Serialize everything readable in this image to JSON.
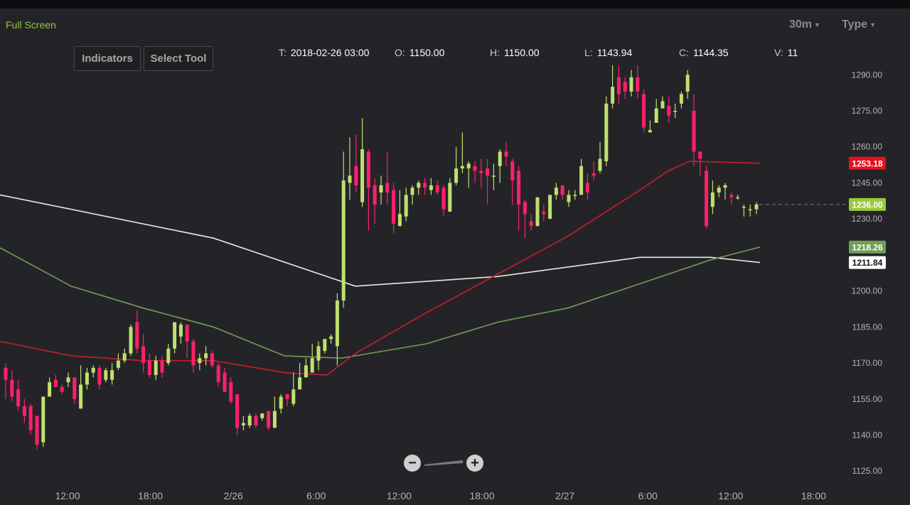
{
  "toolbar": {
    "full_screen": "Full Screen",
    "indicators": "Indicators",
    "select_tool": "Select Tool",
    "interval": "30m",
    "type": "Type"
  },
  "ohlc": {
    "t_label": "T:",
    "t_value": "2018-02-26 03:00",
    "o_label": "O:",
    "o_value": "1150.00",
    "h_label": "H:",
    "h_value": "1150.00",
    "l_label": "L:",
    "l_value": "1143.94",
    "c_label": "C:",
    "c_value": "1144.35",
    "v_label": "V:",
    "v_value": "11"
  },
  "zoom": {
    "minus": "−",
    "plus": "+"
  },
  "colors": {
    "up": "#c0e06e",
    "down": "#ff1f6b",
    "ma_red": "#c81e2a",
    "ma_green": "#6f9e55",
    "ma_white": "#e8e8e8",
    "background": "#242428"
  },
  "chart_data": {
    "type": "candlestick",
    "y_ticks": [
      "1290.00",
      "1275.00",
      "1260.00",
      "1245.00",
      "1230.00",
      "1200.00",
      "1185.00",
      "1170.00",
      "1155.00",
      "1140.00",
      "1125.00"
    ],
    "ylim": [
      1123,
      1296
    ],
    "x_ticks": [
      "12:00",
      "18:00",
      "2/26",
      "6:00",
      "12:00",
      "18:00",
      "2/27",
      "6:00",
      "12:00",
      "18:00"
    ],
    "price_labels": [
      {
        "text": "1253.18",
        "value": 1253.18,
        "color": "#e8101e",
        "text_color": "#ffffff"
      },
      {
        "text": "1236.00",
        "value": 1236.0,
        "color": "#9acb3c",
        "text_color": "#ffffff"
      },
      {
        "text": "1218.26",
        "value": 1218.26,
        "color": "#6f9e55",
        "text_color": "#ffffff"
      },
      {
        "text": "1211.84",
        "value": 1211.84,
        "color": "#ffffff",
        "text_color": "#111111"
      }
    ],
    "last_price": 1236.0,
    "candles": [
      [
        1168,
        1163,
        1170,
        1155
      ],
      [
        1163,
        1156,
        1167,
        1154
      ],
      [
        1159,
        1152,
        1163,
        1150
      ],
      [
        1152,
        1148,
        1155,
        1145
      ],
      [
        1152,
        1142,
        1153,
        1140
      ],
      [
        1148,
        1136,
        1148,
        1134
      ],
      [
        1137,
        1156,
        1156,
        1135
      ],
      [
        1156,
        1162,
        1164,
        1156
      ],
      [
        1163,
        1160,
        1165,
        1160
      ],
      [
        1160,
        1158,
        1161,
        1157
      ],
      [
        1162,
        1164,
        1166,
        1160
      ],
      [
        1164,
        1155,
        1164,
        1153
      ],
      [
        1151,
        1161,
        1169,
        1151
      ],
      [
        1161,
        1166,
        1168,
        1159
      ],
      [
        1166,
        1168,
        1169,
        1164
      ],
      [
        1168,
        1161,
        1169,
        1159
      ],
      [
        1163,
        1167,
        1168,
        1162
      ],
      [
        1163,
        1167,
        1170,
        1161
      ],
      [
        1168,
        1171,
        1174,
        1167
      ],
      [
        1171,
        1174,
        1176,
        1170
      ],
      [
        1174,
        1185,
        1186,
        1173
      ],
      [
        1187,
        1176,
        1192,
        1174
      ],
      [
        1177,
        1170,
        1182,
        1166
      ],
      [
        1171,
        1165,
        1174,
        1164
      ],
      [
        1165,
        1171,
        1173,
        1163
      ],
      [
        1171,
        1166,
        1173,
        1164
      ],
      [
        1170,
        1176,
        1178,
        1169
      ],
      [
        1176,
        1187,
        1187,
        1174
      ],
      [
        1181,
        1186,
        1187,
        1178
      ],
      [
        1186,
        1179,
        1186,
        1172
      ],
      [
        1179,
        1169,
        1180,
        1166
      ],
      [
        1170,
        1172,
        1174,
        1167
      ],
      [
        1172,
        1174,
        1177,
        1169
      ],
      [
        1174,
        1169,
        1175,
        1168
      ],
      [
        1169,
        1162,
        1170,
        1160
      ],
      [
        1166,
        1158,
        1168,
        1158
      ],
      [
        1162,
        1154,
        1164,
        1153
      ],
      [
        1157,
        1143,
        1157,
        1140
      ],
      [
        1144,
        1145,
        1148,
        1142
      ],
      [
        1144,
        1148,
        1149,
        1143
      ],
      [
        1148,
        1144,
        1149,
        1143
      ],
      [
        1147,
        1149,
        1149,
        1146
      ],
      [
        1150,
        1143,
        1149,
        1142
      ],
      [
        1143,
        1150,
        1156,
        1143
      ],
      [
        1151,
        1156,
        1157,
        1149
      ],
      [
        1157,
        1155,
        1157,
        1152
      ],
      [
        1153,
        1159,
        1166,
        1152
      ],
      [
        1159,
        1164,
        1170,
        1159
      ],
      [
        1164,
        1169,
        1172,
        1164
      ],
      [
        1166,
        1172,
        1178,
        1166
      ],
      [
        1171,
        1177,
        1179,
        1167
      ],
      [
        1175,
        1180,
        1180,
        1174
      ],
      [
        1180,
        1181,
        1182,
        1178
      ],
      [
        1177,
        1196,
        1199,
        1169
      ],
      [
        1196,
        1246,
        1258,
        1193
      ],
      [
        1245,
        1248,
        1264,
        1238
      ],
      [
        1252,
        1244,
        1265,
        1241
      ],
      [
        1237,
        1259,
        1272,
        1235
      ],
      [
        1258,
        1243,
        1259,
        1225
      ],
      [
        1244,
        1236,
        1247,
        1228
      ],
      [
        1241,
        1244,
        1248,
        1236
      ],
      [
        1245,
        1241,
        1258,
        1236
      ],
      [
        1242,
        1228,
        1245,
        1224
      ],
      [
        1227,
        1232,
        1242,
        1227
      ],
      [
        1231,
        1240,
        1243,
        1229
      ],
      [
        1240,
        1243,
        1244,
        1236
      ],
      [
        1243,
        1245,
        1246,
        1240
      ],
      [
        1245,
        1243,
        1247,
        1240
      ],
      [
        1242,
        1244,
        1247,
        1240
      ],
      [
        1244,
        1241,
        1246,
        1240
      ],
      [
        1243,
        1234,
        1244,
        1231
      ],
      [
        1233,
        1245,
        1247,
        1233
      ],
      [
        1245,
        1251,
        1260,
        1244
      ],
      [
        1251,
        1252,
        1266,
        1249
      ],
      [
        1251,
        1253,
        1254,
        1243
      ],
      [
        1252,
        1250,
        1254,
        1245
      ],
      [
        1250,
        1249,
        1255,
        1243
      ],
      [
        1251,
        1248,
        1255,
        1236
      ],
      [
        1248,
        1248,
        1253,
        1242
      ],
      [
        1252,
        1258,
        1259,
        1245
      ],
      [
        1258,
        1256,
        1262,
        1252
      ],
      [
        1254,
        1246,
        1255,
        1236
      ],
      [
        1250,
        1236,
        1252,
        1225
      ],
      [
        1237,
        1232,
        1238,
        1222
      ],
      [
        1229,
        1227,
        1232,
        1225
      ],
      [
        1227,
        1239,
        1239,
        1227
      ],
      [
        1233,
        1232,
        1236,
        1229
      ],
      [
        1230,
        1240,
        1240,
        1230
      ],
      [
        1240,
        1243,
        1245,
        1238
      ],
      [
        1244,
        1240,
        1243,
        1238
      ],
      [
        1237,
        1240,
        1242,
        1235
      ],
      [
        1240,
        1240,
        1242,
        1238
      ],
      [
        1240,
        1252,
        1255,
        1240
      ],
      [
        1245,
        1241,
        1249,
        1238
      ],
      [
        1249,
        1248,
        1254,
        1246
      ],
      [
        1250,
        1255,
        1262,
        1249
      ],
      [
        1254,
        1278,
        1281,
        1252
      ],
      [
        1278,
        1285,
        1294,
        1276
      ],
      [
        1289,
        1282,
        1294,
        1278
      ],
      [
        1287,
        1283,
        1289,
        1280
      ],
      [
        1283,
        1289,
        1292,
        1281
      ],
      [
        1289,
        1283,
        1294,
        1280
      ],
      [
        1282,
        1268,
        1284,
        1266
      ],
      [
        1266,
        1267,
        1271,
        1267
      ],
      [
        1270,
        1276,
        1280,
        1271
      ],
      [
        1276,
        1279,
        1281,
        1276
      ],
      [
        1277,
        1273,
        1281,
        1270
      ],
      [
        1275,
        1275,
        1278,
        1272
      ],
      [
        1278,
        1282,
        1283,
        1276
      ],
      [
        1283,
        1290,
        1292,
        1280
      ],
      [
        1275,
        1258,
        1282,
        1252
      ],
      [
        1258,
        1255,
        1258,
        1248
      ],
      [
        1250,
        1227,
        1252,
        1226
      ],
      [
        1235,
        1241,
        1246,
        1232
      ],
      [
        1241,
        1243,
        1244,
        1239
      ],
      [
        1243,
        1244,
        1245,
        1238
      ],
      [
        1240,
        1239,
        1241,
        1236
      ],
      [
        1239,
        1239,
        1240,
        1238
      ],
      [
        1235,
        1235,
        1236,
        1231
      ],
      [
        1234,
        1234,
        1236,
        1231
      ],
      [
        1234,
        1236,
        1237,
        1232
      ]
    ],
    "moving_averages": [
      {
        "color": "#e8e8e8",
        "x": [
          0,
          300,
          500,
          700,
          900,
          1000,
          1069
        ],
        "y": [
          1240,
          1222,
          1202,
          1206,
          1214,
          1214,
          1211.84
        ]
      },
      {
        "color": "#6f9e55",
        "x": [
          0,
          100,
          200,
          300,
          400,
          480,
          600,
          700,
          800,
          900,
          1000,
          1069
        ],
        "y": [
          1218,
          1202,
          1193,
          1185,
          1173,
          1172,
          1178,
          1187,
          1193,
          1203,
          1213,
          1218.26
        ]
      },
      {
        "color": "#c81e2a",
        "x": [
          0,
          100,
          200,
          300,
          400,
          460,
          500,
          600,
          700,
          800,
          900,
          940,
          970,
          1069
        ],
        "y": [
          1179,
          1173,
          1171,
          1171,
          1166,
          1165,
          1174,
          1191,
          1207,
          1223,
          1242,
          1250,
          1254,
          1253.18
        ]
      }
    ]
  }
}
